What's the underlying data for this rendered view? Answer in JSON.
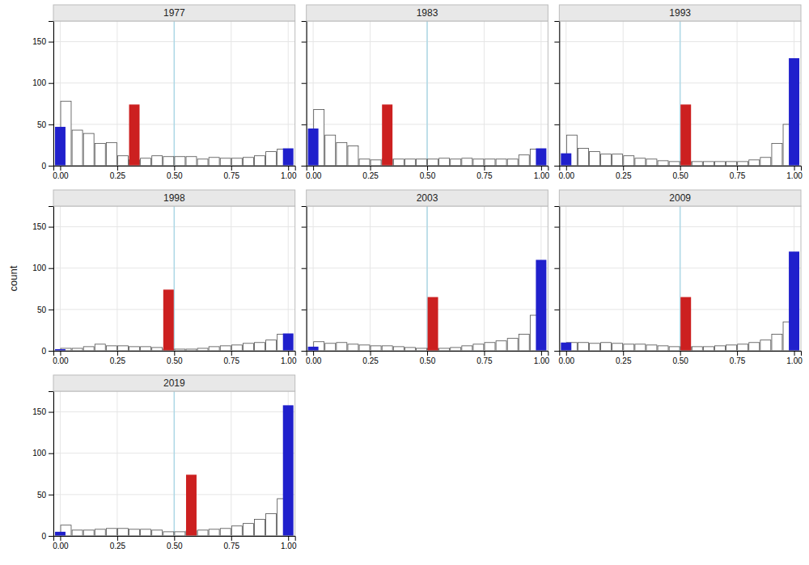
{
  "chart_data": [
    {
      "type": "bar",
      "title": "1977",
      "xlim": [
        -0.03,
        1.03
      ],
      "ylim": [
        0,
        175
      ],
      "xticks": [
        {
          "value": 0.0,
          "label": "0.00"
        },
        {
          "value": 0.25,
          "label": "0.25"
        },
        {
          "value": 0.5,
          "label": "0.50"
        },
        {
          "value": 0.75,
          "label": "0.75"
        },
        {
          "value": 1.0,
          "label": "1.00"
        }
      ],
      "yticks": [
        0,
        50,
        100,
        150
      ],
      "grid": true,
      "series": [
        {
          "type": "vline",
          "x": [
            0.5
          ],
          "color": "#add8e6"
        },
        {
          "x": [
            0.025,
            0.075,
            0.125,
            0.175,
            0.225,
            0.275,
            0.325,
            0.375,
            0.425,
            0.475,
            0.525,
            0.575,
            0.625,
            0.675,
            0.725,
            0.775,
            0.825,
            0.875,
            0.925,
            0.975
          ],
          "values": [
            78,
            43,
            39,
            27,
            28,
            12,
            7,
            9,
            12,
            11,
            11,
            11,
            8,
            10,
            9,
            9,
            10,
            12,
            17,
            20
          ],
          "color": "#ffffff"
        },
        {
          "x": [
            0.0,
            1.0
          ],
          "values": [
            47,
            21
          ],
          "color": "#2020cc"
        },
        {
          "x": [
            0.325
          ],
          "values": [
            74
          ],
          "color": "#cc2020"
        }
      ]
    },
    {
      "type": "bar",
      "title": "1983",
      "xlim": [
        -0.03,
        1.03
      ],
      "ylim": [
        0,
        175
      ],
      "xticks": [
        {
          "value": 0.0,
          "label": "0.00"
        },
        {
          "value": 0.25,
          "label": "0.25"
        },
        {
          "value": 0.5,
          "label": "0.50"
        },
        {
          "value": 0.75,
          "label": "0.75"
        },
        {
          "value": 1.0,
          "label": "1.00"
        }
      ],
      "yticks": [
        0,
        50,
        100,
        150
      ],
      "grid": true,
      "tick_labels": "x",
      "series": [
        {
          "type": "vline",
          "x": [
            0.5
          ],
          "color": "#add8e6"
        },
        {
          "x": [
            0.025,
            0.075,
            0.125,
            0.175,
            0.225,
            0.275,
            0.325,
            0.375,
            0.425,
            0.475,
            0.525,
            0.575,
            0.625,
            0.675,
            0.725,
            0.775,
            0.825,
            0.875,
            0.925,
            0.975
          ],
          "values": [
            68,
            37,
            28,
            24,
            8,
            7,
            8,
            8,
            8,
            8,
            8,
            9,
            8,
            9,
            8,
            8,
            8,
            8,
            13,
            20
          ],
          "color": "#ffffff"
        },
        {
          "x": [
            0.0,
            1.0
          ],
          "values": [
            45,
            21
          ],
          "color": "#2020cc"
        },
        {
          "x": [
            0.325
          ],
          "values": [
            74
          ],
          "color": "#cc2020"
        }
      ]
    },
    {
      "type": "bar",
      "title": "1993",
      "xlim": [
        -0.03,
        1.03
      ],
      "ylim": [
        0,
        175
      ],
      "xticks": [
        {
          "value": 0.0,
          "label": "0.00"
        },
        {
          "value": 0.25,
          "label": "0.25"
        },
        {
          "value": 0.5,
          "label": "0.50"
        },
        {
          "value": 0.75,
          "label": "0.75"
        },
        {
          "value": 1.0,
          "label": "1.00"
        }
      ],
      "yticks": [
        0,
        50,
        100,
        150
      ],
      "grid": true,
      "tick_labels": "x",
      "series": [
        {
          "type": "vline",
          "x": [
            0.5
          ],
          "color": "#add8e6"
        },
        {
          "x": [
            0.025,
            0.075,
            0.125,
            0.175,
            0.225,
            0.275,
            0.325,
            0.375,
            0.425,
            0.475,
            0.525,
            0.575,
            0.625,
            0.675,
            0.725,
            0.775,
            0.825,
            0.875,
            0.925,
            0.975
          ],
          "values": [
            37,
            21,
            17,
            14,
            14,
            12,
            9,
            8,
            6,
            5,
            5,
            5,
            5,
            5,
            5,
            5,
            7,
            10,
            27,
            50
          ],
          "color": "#ffffff"
        },
        {
          "x": [
            0.0,
            1.0
          ],
          "values": [
            15,
            130
          ],
          "color": "#2020cc"
        },
        {
          "x": [
            0.525
          ],
          "values": [
            74
          ],
          "color": "#cc2020"
        }
      ]
    },
    {
      "type": "bar",
      "title": "1998",
      "ylabel": "count",
      "xlim": [
        -0.03,
        1.03
      ],
      "ylim": [
        0,
        175
      ],
      "xticks": [
        {
          "value": 0.0,
          "label": "0.00"
        },
        {
          "value": 0.25,
          "label": "0.25"
        },
        {
          "value": 0.5,
          "label": "0.50"
        },
        {
          "value": 0.75,
          "label": "0.75"
        },
        {
          "value": 1.0,
          "label": "1.00"
        }
      ],
      "yticks": [
        0,
        50,
        100,
        150
      ],
      "grid": true,
      "series": [
        {
          "type": "vline",
          "x": [
            0.5
          ],
          "color": "#add8e6"
        },
        {
          "x": [
            0.025,
            0.075,
            0.125,
            0.175,
            0.225,
            0.275,
            0.325,
            0.375,
            0.425,
            0.475,
            0.525,
            0.575,
            0.625,
            0.675,
            0.725,
            0.775,
            0.825,
            0.875,
            0.925,
            0.975
          ],
          "values": [
            3,
            3,
            5,
            8,
            6,
            6,
            5,
            5,
            4,
            2,
            2,
            2,
            3,
            5,
            6,
            7,
            9,
            10,
            13,
            20
          ],
          "color": "#ffffff"
        },
        {
          "x": [
            0.0,
            1.0
          ],
          "values": [
            2,
            21
          ],
          "color": "#2020cc"
        },
        {
          "x": [
            0.475
          ],
          "values": [
            74
          ],
          "color": "#cc2020"
        }
      ]
    },
    {
      "type": "bar",
      "title": "2003",
      "xlim": [
        -0.03,
        1.03
      ],
      "ylim": [
        0,
        175
      ],
      "xticks": [
        {
          "value": 0.0,
          "label": "0.00"
        },
        {
          "value": 0.25,
          "label": "0.25"
        },
        {
          "value": 0.5,
          "label": "0.50"
        },
        {
          "value": 0.75,
          "label": "0.75"
        },
        {
          "value": 1.0,
          "label": "1.00"
        }
      ],
      "yticks": [
        0,
        50,
        100,
        150
      ],
      "grid": true,
      "tick_labels": "x",
      "series": [
        {
          "type": "vline",
          "x": [
            0.5
          ],
          "color": "#add8e6"
        },
        {
          "x": [
            0.025,
            0.075,
            0.125,
            0.175,
            0.225,
            0.275,
            0.325,
            0.375,
            0.425,
            0.475,
            0.525,
            0.575,
            0.625,
            0.675,
            0.725,
            0.775,
            0.825,
            0.875,
            0.925,
            0.975
          ],
          "values": [
            11,
            9,
            10,
            8,
            7,
            6,
            6,
            5,
            4,
            3,
            3,
            3,
            4,
            6,
            8,
            10,
            12,
            15,
            20,
            43
          ],
          "color": "#ffffff"
        },
        {
          "x": [
            0.0,
            1.0
          ],
          "values": [
            5,
            110
          ],
          "color": "#2020cc"
        },
        {
          "x": [
            0.525
          ],
          "values": [
            65
          ],
          "color": "#cc2020"
        }
      ]
    },
    {
      "type": "bar",
      "title": "2009",
      "xlim": [
        -0.03,
        1.03
      ],
      "ylim": [
        0,
        175
      ],
      "xticks": [
        {
          "value": 0.0,
          "label": "0.00"
        },
        {
          "value": 0.25,
          "label": "0.25"
        },
        {
          "value": 0.5,
          "label": "0.50"
        },
        {
          "value": 0.75,
          "label": "0.75"
        },
        {
          "value": 1.0,
          "label": "1.00"
        }
      ],
      "yticks": [
        0,
        50,
        100,
        150
      ],
      "grid": true,
      "tick_labels": "x",
      "series": [
        {
          "type": "vline",
          "x": [
            0.5
          ],
          "color": "#add8e6"
        },
        {
          "x": [
            0.025,
            0.075,
            0.125,
            0.175,
            0.225,
            0.275,
            0.325,
            0.375,
            0.425,
            0.475,
            0.525,
            0.575,
            0.625,
            0.675,
            0.725,
            0.775,
            0.825,
            0.875,
            0.925,
            0.975
          ],
          "values": [
            10,
            10,
            9,
            10,
            9,
            8,
            8,
            7,
            6,
            5,
            5,
            5,
            5,
            6,
            7,
            8,
            10,
            13,
            20,
            35
          ],
          "color": "#ffffff"
        },
        {
          "x": [
            0.0,
            1.0
          ],
          "values": [
            10,
            120
          ],
          "color": "#2020cc"
        },
        {
          "x": [
            0.525
          ],
          "values": [
            65
          ],
          "color": "#cc2020"
        }
      ]
    },
    {
      "type": "bar",
      "title": "2019",
      "xlim": [
        -0.03,
        1.03
      ],
      "ylim": [
        0,
        175
      ],
      "xticks": [
        {
          "value": 0.0,
          "label": "0.00"
        },
        {
          "value": 0.25,
          "label": "0.25"
        },
        {
          "value": 0.5,
          "label": "0.50"
        },
        {
          "value": 0.75,
          "label": "0.75"
        },
        {
          "value": 1.0,
          "label": "1.00"
        }
      ],
      "yticks": [
        0,
        50,
        100,
        150
      ],
      "grid": true,
      "series": [
        {
          "type": "vline",
          "x": [
            0.5
          ],
          "color": "#add8e6"
        },
        {
          "x": [
            0.025,
            0.075,
            0.125,
            0.175,
            0.225,
            0.275,
            0.325,
            0.375,
            0.425,
            0.475,
            0.525,
            0.575,
            0.625,
            0.675,
            0.725,
            0.775,
            0.825,
            0.875,
            0.925,
            0.975
          ],
          "values": [
            13,
            7,
            7,
            8,
            9,
            9,
            8,
            8,
            7,
            5,
            5,
            6,
            7,
            8,
            9,
            12,
            15,
            20,
            27,
            45
          ],
          "color": "#ffffff"
        },
        {
          "x": [
            0.0,
            1.0
          ],
          "values": [
            5,
            158
          ],
          "color": "#2020cc"
        },
        {
          "x": [
            0.575
          ],
          "values": [
            74
          ],
          "color": "#cc2020"
        }
      ]
    }
  ]
}
